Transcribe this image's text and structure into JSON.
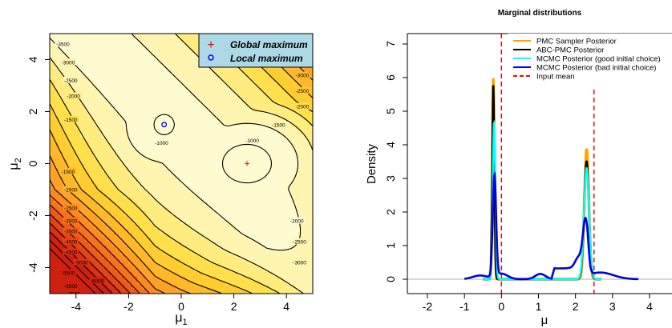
{
  "chart_data": [
    {
      "type": "heatmap",
      "title": "",
      "xlabel": "μ1",
      "ylabel": "μ2",
      "xlim": [
        -5,
        5
      ],
      "ylim": [
        -5,
        5
      ],
      "x_ticks": [
        "-4",
        "-2",
        "0",
        "2",
        "4"
      ],
      "y_ticks": [
        "-4",
        "-2",
        "0",
        "2",
        "4"
      ],
      "legend": {
        "placement": "top-right",
        "background": "#add8e6",
        "entries": [
          {
            "label": "Global maximum",
            "marker": "+",
            "color": "#ff0000"
          },
          {
            "label": "Local maximum",
            "marker": "o",
            "color": "#0000ff"
          }
        ]
      },
      "points": [
        {
          "name": "Global maximum",
          "x": 2.5,
          "y": 0.0,
          "color": "#ff0000"
        },
        {
          "name": "Local maximum",
          "x": -0.65,
          "y": 1.5,
          "color": "#0000ff"
        }
      ],
      "contour_labels": [
        {
          "text": "-3500",
          "x": -4.5,
          "y": 4.6
        },
        {
          "text": "-3000",
          "x": -4.3,
          "y": 3.9
        },
        {
          "text": "-2500",
          "x": -4.2,
          "y": 3.2
        },
        {
          "text": "-2000",
          "x": -4.1,
          "y": 2.6
        },
        {
          "text": "-1500",
          "x": -4.2,
          "y": 1.7
        },
        {
          "text": "-1000",
          "x": -0.75,
          "y": 0.8
        },
        {
          "text": "-1000",
          "x": 2.7,
          "y": 0.9
        },
        {
          "text": "-3000",
          "x": 4.6,
          "y": 3.4
        },
        {
          "text": "-2500",
          "x": 4.6,
          "y": 2.8
        },
        {
          "text": "-2000",
          "x": 4.6,
          "y": 2.2
        },
        {
          "text": "-1500",
          "x": 3.7,
          "y": 1.5
        },
        {
          "text": "-1500",
          "x": -4.3,
          "y": -0.3
        },
        {
          "text": "-2000",
          "x": -4.2,
          "y": -1.0
        },
        {
          "text": "-2500",
          "x": -4.2,
          "y": -1.7
        },
        {
          "text": "-3000",
          "x": -4.2,
          "y": -2.2
        },
        {
          "text": "-3500",
          "x": -4.2,
          "y": -2.6
        },
        {
          "text": "-4000",
          "x": -4.2,
          "y": -3.0
        },
        {
          "text": "-4500",
          "x": -4.2,
          "y": -3.4
        },
        {
          "text": "-5000",
          "x": -3.8,
          "y": -3.8
        },
        {
          "text": "-5500",
          "x": -4.3,
          "y": -4.2
        },
        {
          "text": "-6000",
          "x": -3.2,
          "y": -4.5
        },
        {
          "text": "-6500",
          "x": -4.2,
          "y": -4.7
        },
        {
          "text": "-7500",
          "x": -4.1,
          "y": -5.0
        },
        {
          "text": "-2000",
          "x": 4.4,
          "y": -2.2
        },
        {
          "text": "-2500",
          "x": 4.5,
          "y": -3.0
        },
        {
          "text": "-3000",
          "x": 4.5,
          "y": -3.8
        }
      ]
    },
    {
      "type": "line",
      "title": "Marginal distributions",
      "xlabel": "μ",
      "ylabel": "Density",
      "xlim": [
        -2.2,
        4.2
      ],
      "ylim": [
        -0.2,
        7.4
      ],
      "x_ticks": [
        "-2",
        "-1",
        "0",
        "1",
        "2",
        "3",
        "4"
      ],
      "y_ticks": [
        "0",
        "1",
        "2",
        "3",
        "4",
        "5",
        "6",
        "7"
      ],
      "reference_lines": [
        {
          "name": "Input mean",
          "axis": "x",
          "value": 0.0,
          "color": "#dd0000",
          "dash": true
        },
        {
          "name": "Input mean",
          "axis": "x",
          "value": 2.5,
          "color": "#dd0000",
          "dash": true
        },
        {
          "axis": "y",
          "value": 0.0,
          "color": "#b0b0b0",
          "dash": false
        }
      ],
      "legend": {
        "placement": "top-right",
        "entries": [
          {
            "label": "PMC Sampler Posterior",
            "color": "#ffa500",
            "dash": false
          },
          {
            "label": "ABC-PMC Posterior",
            "color": "#000000",
            "dash": false
          },
          {
            "label": "MCMC Posterior (good initial choice)",
            "color": "#00ffff",
            "dash": false
          },
          {
            "label": "MCMC Posterior (bad initial choice)",
            "color": "#0000ff",
            "dash": false
          },
          {
            "label": "Input mean",
            "color": "#ff0000",
            "dash": true
          }
        ]
      },
      "series": [
        {
          "name": "PMC Sampler Posterior",
          "color": "#ffa500",
          "components": [
            {
              "weight": 0.42,
              "mean": -0.22,
              "sd": 0.028
            },
            {
              "weight": 0.58,
              "mean": 2.3,
              "sd": 0.06
            }
          ]
        },
        {
          "name": "ABC-PMC Posterior",
          "color": "#000000",
          "components": [
            {
              "weight": 0.42,
              "mean": -0.22,
              "sd": 0.029
            },
            {
              "weight": 0.58,
              "mean": 2.3,
              "sd": 0.066
            }
          ]
        },
        {
          "name": "MCMC Posterior (good initial choice)",
          "color": "#00ffff",
          "components": [
            {
              "weight": 0.42,
              "mean": -0.2,
              "sd": 0.036
            },
            {
              "weight": 0.58,
              "mean": 2.3,
              "sd": 0.07
            }
          ]
        },
        {
          "name": "MCMC Posterior (bad initial choice)",
          "color": "#0000dd",
          "components": [
            {
              "weight": 0.055,
              "mean": -0.58,
              "sd": 0.2
            },
            {
              "weight": 0.34,
              "mean": -0.19,
              "sd": 0.045
            },
            {
              "weight": 0.07,
              "mean": 0.0,
              "sd": 0.17
            },
            {
              "weight": 0.055,
              "mean": 1.05,
              "sd": 0.14
            },
            {
              "weight": 0.065,
              "mean": 2.08,
              "sd": 0.09
            },
            {
              "weight": 0.24,
              "mean": 2.27,
              "sd": 0.07
            },
            {
              "weight": 0.175,
              "mean": 2.67,
              "sd": 0.35
            }
          ],
          "baseline": 0.32,
          "baseline_range": [
            1.35,
            2.4
          ]
        }
      ]
    }
  ]
}
